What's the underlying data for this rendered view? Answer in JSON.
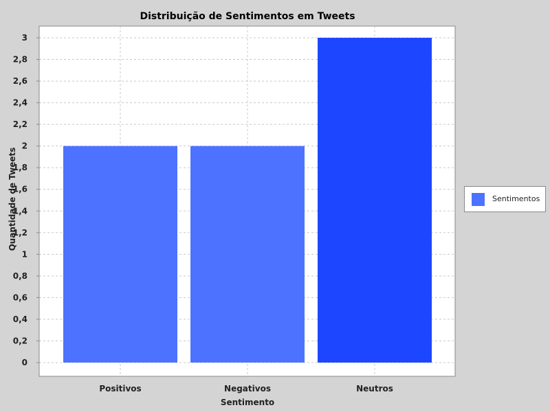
{
  "chart_data": {
    "type": "bar",
    "title": "Distribuição de Sentimentos em Tweets",
    "xlabel": "Sentimento",
    "ylabel": "Quantidade de Tweets",
    "categories": [
      "Positivos",
      "Negativos",
      "Neutros"
    ],
    "series": [
      {
        "name": "Sentimentos",
        "values": [
          2,
          2,
          3
        ]
      }
    ],
    "ylim": [
      0,
      3.15
    ],
    "yticks": [
      "0",
      "0,2",
      "0,4",
      "0,6",
      "0,8",
      "1",
      "1,2",
      "1,4",
      "1,6",
      "1,8",
      "2",
      "2,2",
      "2,4",
      "2,6",
      "2,8",
      "3"
    ],
    "grid": true,
    "legend_position": "right",
    "colors": {
      "background": "#d4d4d4",
      "plot_background": "#ffffff",
      "grid": "#c8c8c8",
      "bar": "#4d72ff",
      "bar_highlight": "#1c46ff",
      "legend_swatch": "#4d72ff"
    },
    "highlight_index": 2
  }
}
